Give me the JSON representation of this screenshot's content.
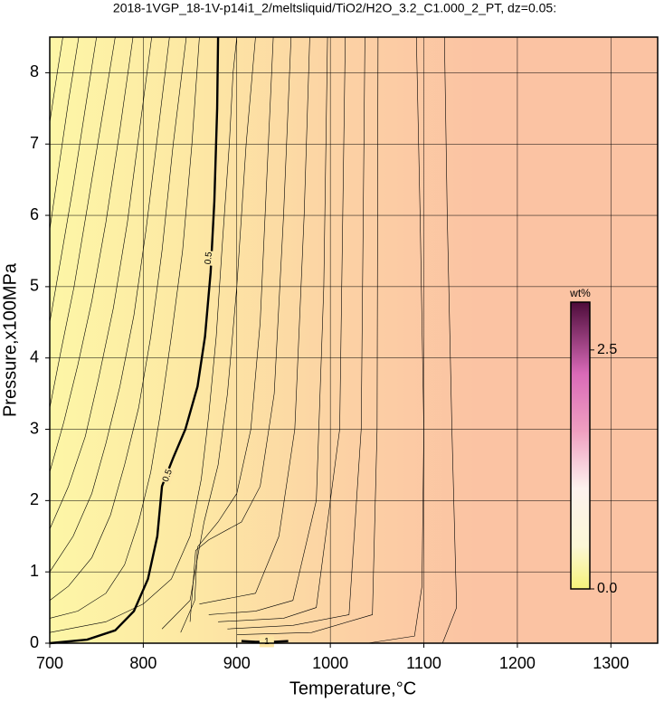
{
  "chart_data": {
    "type": "contour",
    "title": "2018-1VGP_18-1V-p14i1_2/meltsliquid/TiO2/H2O_3.2_C1.000_2_PT, dz=0.05:",
    "xlabel": "Temperature,°C",
    "ylabel": "Pressure,x100MPa",
    "xlim": [
      700,
      1350
    ],
    "ylim": [
      0,
      8.5
    ],
    "xticks": [
      700,
      800,
      900,
      1000,
      1100,
      1200,
      1300
    ],
    "yticks": [
      0,
      1,
      2,
      3,
      4,
      5,
      6,
      7,
      8
    ],
    "grid": true,
    "line_color": "#000000",
    "colorbar": {
      "label": "wt%",
      "clim": [
        0,
        3.0
      ],
      "ticks": [
        {
          "value": 0,
          "label": "0.0"
        },
        {
          "value": 2.5,
          "label": "2.5"
        }
      ]
    },
    "contours": [
      {
        "level": 0.5,
        "bold": true,
        "x": [
          700,
          740,
          770,
          790,
          805,
          815,
          820,
          832,
          845,
          858,
          866,
          872,
          876,
          879,
          880
        ],
        "y": [
          0,
          0.05,
          0.18,
          0.45,
          0.9,
          1.5,
          2.2,
          2.6,
          3.0,
          3.6,
          4.3,
          5.2,
          6.2,
          7.5,
          8.5
        ]
      },
      {
        "level": 1,
        "bold": true,
        "x": [
          905,
          920,
          940,
          955
        ],
        "y": [
          0.03,
          0.02,
          0.02,
          0.03
        ]
      },
      {
        "level": 0.45,
        "x": [
          700,
          730,
          760,
          780,
          795,
          808,
          818,
          830,
          842,
          852,
          860
        ],
        "y": [
          0.35,
          0.45,
          0.7,
          1.1,
          1.7,
          2.4,
          3.2,
          4.3,
          5.5,
          7,
          8.5
        ]
      },
      {
        "level": 0.4,
        "x": [
          700,
          720,
          745,
          765,
          780,
          795,
          808,
          820,
          832,
          846
        ],
        "y": [
          0.6,
          0.8,
          1.2,
          1.8,
          2.5,
          3.3,
          4.3,
          5.5,
          7,
          8.5
        ]
      },
      {
        "level": 0.35,
        "x": [
          700,
          725,
          745,
          760,
          775,
          790,
          803,
          816,
          828
        ],
        "y": [
          1.0,
          1.5,
          2.1,
          2.8,
          3.6,
          4.6,
          5.8,
          7.2,
          8.5
        ]
      },
      {
        "level": 0.3,
        "x": [
          700,
          720,
          738,
          752,
          768,
          783,
          796,
          809
        ],
        "y": [
          1.6,
          2.2,
          2.9,
          3.7,
          4.7,
          5.9,
          7.2,
          8.5
        ]
      },
      {
        "level": 0.25,
        "x": [
          700,
          715,
          730,
          745,
          760,
          775,
          789
        ],
        "y": [
          2.4,
          3.1,
          3.9,
          4.8,
          5.9,
          7.2,
          8.5
        ]
      },
      {
        "level": 0.2,
        "x": [
          700,
          712,
          726,
          740,
          755,
          770
        ],
        "y": [
          3.3,
          4.1,
          5.0,
          6.1,
          7.3,
          8.5
        ]
      },
      {
        "level": 0.15,
        "x": [
          700,
          712,
          725,
          738,
          750
        ],
        "y": [
          4.5,
          5.4,
          6.4,
          7.5,
          8.5
        ]
      },
      {
        "level": 0.1,
        "x": [
          700,
          710,
          720,
          731
        ],
        "y": [
          5.8,
          6.7,
          7.6,
          8.5
        ]
      },
      {
        "level": 0.05,
        "x": [
          700,
          708,
          714
        ],
        "y": [
          7.3,
          8.0,
          8.5
        ]
      },
      {
        "level": 0.55,
        "x": [
          700,
          760,
          800,
          830,
          850,
          862,
          870,
          878,
          884,
          892,
          896,
          900
        ],
        "y": [
          0.15,
          0.3,
          0.55,
          0.9,
          1.5,
          2.3,
          3.2,
          4.3,
          5.5,
          7,
          8,
          8.5
        ]
      },
      {
        "level": 0.6,
        "x": [
          820,
          850,
          858,
          865,
          880,
          890,
          900,
          910,
          920
        ],
        "y": [
          0.2,
          0.6,
          1.2,
          1.7,
          2.5,
          3.5,
          5,
          7,
          8.5
        ]
      },
      {
        "level": 0.65,
        "x": [
          840,
          855,
          858,
          880,
          900,
          915,
          925,
          932,
          939
        ],
        "y": [
          0.15,
          0.6,
          1.35,
          1.7,
          2.1,
          3,
          4.5,
          6.5,
          8.5
        ]
      },
      {
        "level": 0.7,
        "x": [
          850,
          856,
          870,
          905,
          925,
          940,
          950,
          958
        ],
        "y": [
          0.3,
          1.3,
          1.45,
          1.7,
          2.2,
          3.5,
          6,
          8.5
        ]
      },
      {
        "level": 0.75,
        "x": [
          860,
          880,
          920,
          945,
          962,
          972,
          978
        ],
        "y": [
          0.55,
          0.6,
          0.7,
          1.5,
          3,
          6,
          8.5
        ]
      },
      {
        "level": 0.8,
        "x": [
          870,
          920,
          960,
          985,
          993,
          997
        ],
        "y": [
          0.4,
          0.45,
          0.6,
          2,
          5,
          8.5
        ]
      },
      {
        "level": 0.85,
        "x": [
          880,
          950,
          985,
          1010,
          1016
        ],
        "y": [
          0.3,
          0.35,
          0.5,
          3,
          8.5
        ]
      },
      {
        "level": 0.9,
        "x": [
          890,
          960,
          1020,
          1033,
          1037
        ],
        "y": [
          0.2,
          0.25,
          0.4,
          3,
          8.5
        ]
      },
      {
        "level": 0.95,
        "x": [
          900,
          980,
          1045,
          1050,
          1051
        ],
        "y": [
          0.12,
          0.15,
          0.4,
          3,
          8.5
        ]
      },
      {
        "level": 1.05,
        "x": [
          1040,
          1090,
          1098,
          1100,
          1096,
          1092
        ],
        "y": [
          0,
          0.1,
          0.8,
          3,
          6,
          8.5
        ]
      },
      {
        "level": 1.1,
        "x": [
          1120,
          1135,
          1130,
          1125,
          1122
        ],
        "y": [
          0,
          0.5,
          3,
          6,
          8.5
        ]
      }
    ]
  }
}
